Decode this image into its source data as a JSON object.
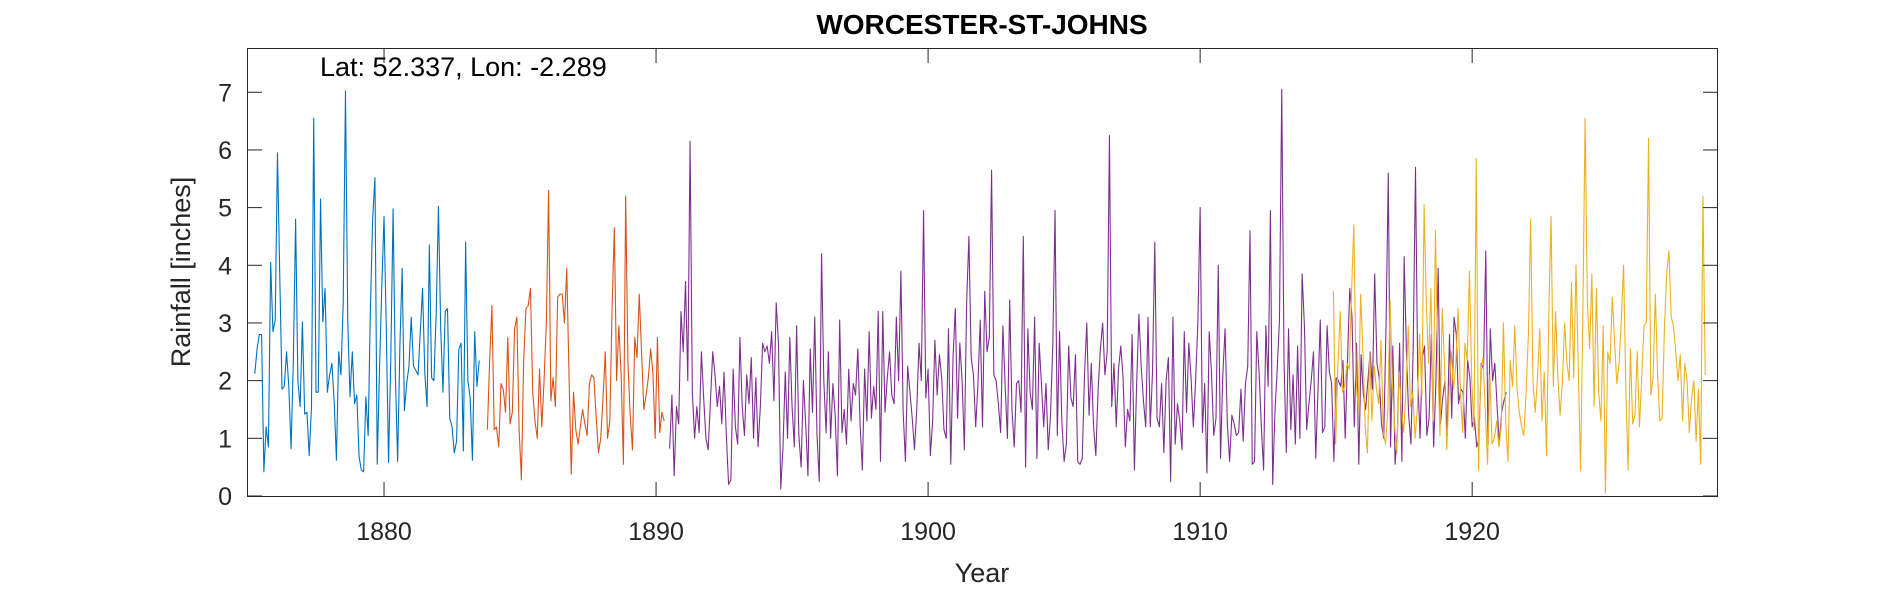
{
  "chart_data": {
    "type": "line",
    "title": "WORCESTER-ST-JOHNS",
    "annotation": "Lat: 52.337, Lon: -2.289",
    "xlabel": "Year",
    "ylabel": "Rainfall [inches]",
    "xlim": [
      1875,
      1929
    ],
    "ylim": [
      0,
      7.75
    ],
    "xticks": [
      1880,
      1890,
      1900,
      1910,
      1920
    ],
    "yticks": [
      0,
      1,
      2,
      3,
      4,
      5,
      6,
      7
    ],
    "grid": false,
    "legend": "none",
    "series": [
      {
        "color": "#0072BD",
        "x_start": 1875.25,
        "x_step": 0.0833333,
        "values": [
          2.12,
          2.55,
          2.8,
          2.8,
          0.42,
          1.2,
          0.85,
          4.05,
          2.85,
          3.05,
          5.95,
          3.85,
          1.85,
          1.9,
          2.5,
          1.9,
          0.82,
          2.35,
          4.8,
          2.0,
          1.55,
          3.02,
          1.42,
          1.45,
          0.7,
          1.55,
          6.55,
          1.8,
          1.8,
          5.15,
          3.02,
          3.6,
          1.8,
          2.1,
          2.3,
          1.65,
          0.62,
          2.5,
          2.1,
          3.35,
          7.02,
          3.05,
          1.72,
          2.5,
          1.6,
          1.75,
          0.68,
          0.45,
          0.42,
          1.72,
          1.05,
          3.25,
          4.82,
          5.52,
          0.55,
          2.18,
          3.6,
          4.85,
          2.9,
          0.58,
          2.4,
          4.98,
          2.1,
          0.6,
          2.6,
          3.95,
          1.48,
          1.95,
          2.25,
          3.1,
          2.25,
          2.18,
          2.1,
          2.85,
          3.6,
          2.12,
          1.55,
          4.35,
          2.05,
          2.0,
          3.15,
          5.02,
          2.92,
          1.8,
          3.2,
          3.25,
          1.35,
          1.2,
          0.75,
          0.95,
          2.55,
          2.65,
          0.78,
          4.4,
          2.0,
          1.7,
          0.62,
          2.85,
          1.9,
          2.35
        ]
      },
      {
        "color": "#D95319",
        "x_start": 1883.8,
        "x_step": 0.0833333,
        "values": [
          1.15,
          2.35,
          3.3,
          1.15,
          1.2,
          0.85,
          1.95,
          1.85,
          1.45,
          2.75,
          1.25,
          1.45,
          2.9,
          3.1,
          1.15,
          0.28,
          2.35,
          3.25,
          3.3,
          3.6,
          1.8,
          1.3,
          1.0,
          2.2,
          1.2,
          2.0,
          3.0,
          5.3,
          1.65,
          2.05,
          1.55,
          3.45,
          3.5,
          3.5,
          3.0,
          3.95,
          2.1,
          0.38,
          1.8,
          1.15,
          0.9,
          1.2,
          1.5,
          1.25,
          1.05,
          1.95,
          2.1,
          2.05,
          1.35,
          0.75,
          1.0,
          1.7,
          2.5,
          1.0,
          1.3,
          3.25,
          4.65,
          2.0,
          2.95,
          2.1,
          0.55,
          5.2,
          2.3,
          1.4,
          0.8,
          2.75,
          2.4,
          3.5,
          2.5,
          1.5,
          1.75,
          2.05,
          2.55,
          2.15,
          1.0,
          2.75,
          1.1,
          1.45,
          1.3
        ]
      },
      {
        "color": "#7E2F8E",
        "x_start": 1890.5,
        "x_step": 0.0833333,
        "values": [
          0.82,
          1.75,
          0.35,
          1.55,
          1.25,
          3.2,
          2.5,
          3.72,
          2.0,
          6.15,
          1.8,
          1.0,
          1.55,
          1.1,
          2.5,
          1.7,
          1.0,
          0.8,
          1.65,
          2.5,
          2.1,
          1.55,
          1.9,
          1.25,
          2.15,
          1.05,
          0.2,
          0.28,
          2.2,
          1.2,
          0.9,
          2.75,
          1.55,
          1.05,
          2.1,
          1.6,
          2.4,
          1.0,
          2.05,
          0.85,
          1.55,
          2.65,
          2.5,
          2.6,
          2.3,
          2.85,
          1.65,
          3.35,
          2.65,
          0.12,
          0.85,
          2.15,
          1.0,
          2.75,
          1.55,
          0.85,
          2.95,
          1.05,
          0.5,
          2.0,
          1.25,
          0.35,
          2.55,
          1.45,
          3.1,
          1.05,
          0.25,
          4.2,
          2.0,
          1.1,
          2.5,
          1.0,
          1.95,
          1.4,
          0.35,
          3.05,
          1.1,
          1.5,
          0.9,
          2.2,
          1.3,
          1.95,
          1.75,
          2.55,
          1.25,
          0.45,
          2.2,
          1.3,
          2.85,
          1.35,
          1.9,
          1.5,
          3.2,
          0.6,
          3.2,
          1.45,
          2.05,
          2.5,
          1.75,
          1.6,
          3.1,
          2.0,
          3.9,
          1.45,
          0.6,
          2.25,
          1.8,
          1.35,
          0.8,
          1.5,
          2.65,
          2.0,
          4.95,
          1.7,
          2.2,
          0.7,
          1.3,
          2.7,
          1.75,
          2.45,
          2.05,
          1.15,
          1.0,
          2.9,
          0.55,
          2.4,
          3.25,
          1.35,
          2.65,
          2.0,
          0.8,
          3.35,
          4.5,
          2.4,
          2.1,
          1.2,
          1.95,
          3.05,
          1.2,
          3.55,
          2.5,
          2.75,
          5.65,
          2.1,
          2.0,
          1.6,
          1.1,
          2.95,
          1.9,
          1.0,
          3.4,
          1.5,
          0.85,
          1.95,
          2.0,
          1.45,
          4.5,
          0.5,
          2.9,
          1.8,
          1.5,
          3.1,
          0.65,
          2.65,
          1.95,
          1.2,
          1.95,
          0.8,
          1.4,
          2.6,
          4.95,
          1.05,
          2.85,
          1.3,
          0.6,
          0.9,
          2.6,
          1.7,
          1.55,
          2.45,
          0.6,
          0.55,
          0.65,
          2.1,
          3.0,
          1.4,
          2.3,
          1.2,
          0.7,
          1.85,
          2.55,
          3.0,
          2.1,
          2.5,
          6.25,
          1.55,
          2.3,
          1.2,
          2.2,
          2.6,
          2.05,
          0.85,
          1.5,
          1.3,
          2.8,
          0.45,
          1.95,
          3.15,
          2.25,
          1.65,
          1.2,
          3.1,
          1.2,
          2.15,
          4.4,
          1.35,
          1.2,
          1.95,
          0.75,
          2.0,
          2.4,
          0.25,
          3.1,
          0.9,
          1.6,
          1.3,
          0.8,
          2.85,
          1.45,
          2.65,
          2.05,
          1.2,
          2.0,
          3.0,
          5.0,
          1.1,
          1.95,
          0.4,
          2.85,
          2.15,
          1.05,
          1.35,
          4.0,
          0.65,
          2.1,
          2.9,
          1.25,
          0.6,
          1.4,
          1.25,
          1.05,
          1.1,
          1.85,
          0.95,
          1.95,
          2.25,
          4.6,
          0.55,
          0.6,
          2.85,
          2.15,
          1.2,
          0.45,
          2.95,
          1.9,
          4.95,
          0.2,
          1.45,
          2.2,
          3.05,
          7.05,
          2.35,
          0.75,
          2.9,
          1.15,
          2.1,
          0.9,
          2.6,
          1.0,
          3.85,
          2.95,
          1.15,
          1.6,
          2.0,
          2.5,
          0.65,
          1.85,
          3.05,
          1.1,
          1.2,
          2.95,
          2.15,
          1.95,
          0.6,
          2.05,
          2.0,
          1.9,
          2.35,
          1.0,
          2.35,
          3.6,
          3.1,
          1.2,
          2.65,
          0.55,
          2.45,
          1.75,
          1.5,
          2.0,
          2.5,
          1.85,
          3.85,
          2.3,
          2.05,
          1.25,
          1.0,
          2.95,
          5.6,
          0.85,
          2.6,
          0.55,
          1.1,
          2.65,
          0.6,
          4.15,
          2.5,
          1.4,
          0.9,
          2.6,
          5.7,
          2.05,
          1.0,
          2.4,
          2.6,
          1.05,
          1.35,
          2.8,
          0.85,
          1.95,
          3.95,
          1.25,
          1.7,
          2.0,
          1.05,
          2.8,
          1.35,
          3.1,
          2.8,
          1.6,
          1.85,
          1.8,
          1.0,
          2.35,
          2.05,
          1.2,
          1.35,
          0.85,
          1.0,
          2.3,
          2.2,
          4.25,
          0.9,
          2.9,
          2.0,
          2.3,
          1.55,
          0.9,
          1.45,
          1.65,
          1.8
        ]
      },
      {
        "color": "#EDB120",
        "x_start": 1914.9,
        "x_step": 0.0833333,
        "values": [
          3.55,
          0.9,
          2.3,
          3.2,
          1.8,
          1.9,
          2.3,
          2.2,
          3.55,
          4.7,
          2.0,
          1.5,
          3.5,
          2.5,
          1.2,
          0.75,
          2.5,
          1.3,
          2.25,
          1.85,
          1.6,
          2.7,
          1.1,
          0.9,
          1.5,
          3.4,
          1.95,
          1.2,
          0.75,
          2.15,
          1.5,
          1.1,
          1.85,
          2.95,
          1.55,
          1.8,
          1.0,
          1.5,
          2.8,
          1.75,
          5.05,
          3.3,
          2.3,
          3.6,
          1.3,
          4.6,
          2.4,
          1.05,
          3.25,
          2.3,
          0.8,
          1.8,
          2.5,
          1.85,
          2.3,
          3.25,
          1.85,
          1.1,
          2.65,
          2.35,
          3.9,
          2.0,
          1.15,
          5.85,
          0.45,
          2.2,
          2.4,
          1.45,
          0.55,
          2.1,
          0.9,
          1.0,
          1.3,
          0.85,
          1.2,
          3.0,
          1.25,
          0.6,
          2.35,
          1.9,
          2.95,
          1.85,
          1.45,
          1.2,
          1.05,
          1.8,
          2.8,
          4.8,
          2.0,
          1.45,
          2.05,
          2.9,
          1.3,
          2.15,
          0.7,
          3.15,
          4.85,
          1.9,
          3.2,
          2.05,
          1.4,
          2.0,
          3.0,
          2.3,
          2.0,
          3.7,
          2.05,
          4.0,
          2.25,
          0.45,
          3.05,
          6.55,
          3.4,
          2.55,
          3.85,
          1.55,
          3.6,
          1.8,
          1.3,
          2.95,
          0.05,
          2.5,
          2.3,
          3.45,
          2.7,
          1.95,
          2.3,
          3.05,
          4.0,
          1.85,
          0.45,
          2.55,
          1.25,
          1.4,
          2.5,
          1.2,
          2.05,
          2.95,
          3.0,
          6.2,
          1.75,
          2.05,
          3.5,
          2.1,
          1.3,
          1.35,
          2.9,
          3.85,
          4.25,
          3.1,
          2.95,
          2.5,
          2.0,
          2.45,
          1.3,
          2.3,
          2.0,
          1.1,
          1.7,
          2.0,
          0.95,
          1.85,
          0.55,
          5.2,
          2.1
        ]
      }
    ]
  }
}
